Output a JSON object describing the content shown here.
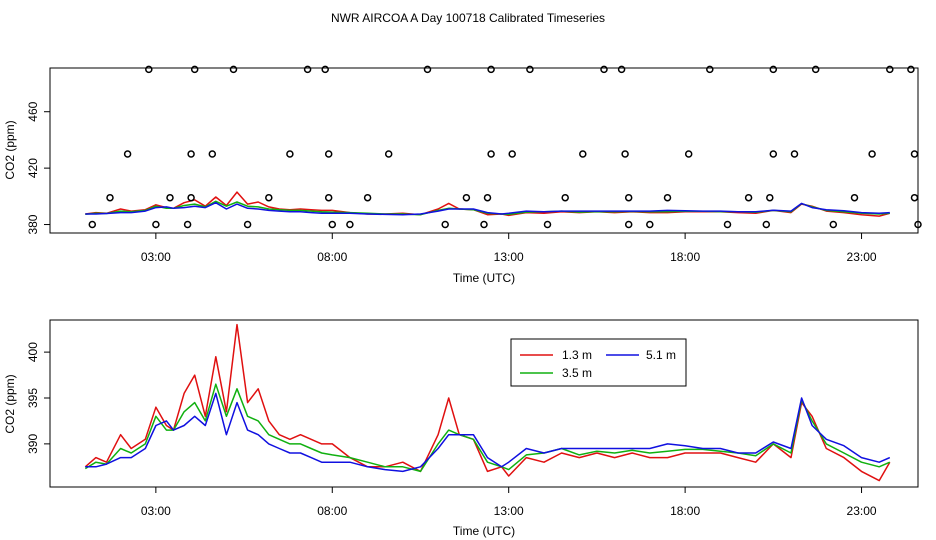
{
  "title": "NWR AIRCOA A  Day 100718  Calibrated Timeseries",
  "chart_data": [
    {
      "type": "scatter+line",
      "title": "",
      "xlabel": "Time (UTC)",
      "ylabel": "CO2 (ppm)",
      "xlim": [
        0,
        24.6
      ],
      "ylim": [
        374,
        491
      ],
      "x_ticks": [
        {
          "value": 3,
          "label": "03:00"
        },
        {
          "value": 8,
          "label": "08:00"
        },
        {
          "value": 13,
          "label": "13:00"
        },
        {
          "value": 18,
          "label": "18:00"
        },
        {
          "value": 23,
          "label": "23:00"
        }
      ],
      "y_ticks": [
        {
          "value": 380,
          "label": "380"
        },
        {
          "value": 420,
          "label": "420"
        },
        {
          "value": 460,
          "label": "460"
        }
      ],
      "points": [
        [
          1.2,
          380
        ],
        [
          1.7,
          399
        ],
        [
          2.2,
          430
        ],
        [
          2.8,
          490
        ],
        [
          3.0,
          380
        ],
        [
          3.4,
          399
        ],
        [
          3.9,
          380
        ],
        [
          4.0,
          399
        ],
        [
          4.0,
          430
        ],
        [
          4.1,
          490
        ],
        [
          4.6,
          430
        ],
        [
          5.2,
          490
        ],
        [
          5.6,
          380
        ],
        [
          6.2,
          399
        ],
        [
          6.8,
          430
        ],
        [
          7.3,
          490
        ],
        [
          7.8,
          490
        ],
        [
          7.9,
          399
        ],
        [
          7.9,
          430
        ],
        [
          8.0,
          380
        ],
        [
          8.5,
          380
        ],
        [
          9.0,
          399
        ],
        [
          9.6,
          430
        ],
        [
          10.7,
          490
        ],
        [
          11.2,
          380
        ],
        [
          11.8,
          399
        ],
        [
          12.3,
          380
        ],
        [
          12.4,
          399
        ],
        [
          12.5,
          430
        ],
        [
          12.5,
          490
        ],
        [
          13.1,
          430
        ],
        [
          13.6,
          490
        ],
        [
          14.1,
          380
        ],
        [
          14.6,
          399
        ],
        [
          15.1,
          430
        ],
        [
          15.7,
          490
        ],
        [
          16.2,
          490
        ],
        [
          16.3,
          430
        ],
        [
          16.4,
          399
        ],
        [
          16.4,
          380
        ],
        [
          17.0,
          380
        ],
        [
          17.5,
          399
        ],
        [
          18.1,
          430
        ],
        [
          18.7,
          490
        ],
        [
          19.2,
          380
        ],
        [
          19.8,
          399
        ],
        [
          20.3,
          380
        ],
        [
          20.4,
          399
        ],
        [
          20.5,
          430
        ],
        [
          20.5,
          490
        ],
        [
          21.1,
          430
        ],
        [
          21.7,
          490
        ],
        [
          22.2,
          380
        ],
        [
          22.8,
          399
        ],
        [
          23.3,
          430
        ],
        [
          23.8,
          490
        ],
        [
          24.4,
          490
        ],
        [
          24.5,
          430
        ],
        [
          24.5,
          399
        ],
        [
          24.6,
          380
        ]
      ],
      "series_ref": "shared_series"
    },
    {
      "type": "line",
      "title": "",
      "xlabel": "Time (UTC)",
      "ylabel": "CO2 (ppm)",
      "xlim": [
        0,
        24.6
      ],
      "ylim": [
        385.3,
        403.5
      ],
      "x_ticks": [
        {
          "value": 3,
          "label": "03:00"
        },
        {
          "value": 8,
          "label": "08:00"
        },
        {
          "value": 13,
          "label": "13:00"
        },
        {
          "value": 18,
          "label": "18:00"
        },
        {
          "value": 23,
          "label": "23:00"
        }
      ],
      "y_ticks": [
        {
          "value": 390,
          "label": "390"
        },
        {
          "value": 395,
          "label": "395"
        },
        {
          "value": 400,
          "label": "400"
        }
      ],
      "legend": [
        {
          "name": "1.3 m",
          "color": "#e01010"
        },
        {
          "name": "5.1 m",
          "color": "#1010e0"
        },
        {
          "name": "3.5 m",
          "color": "#10b010"
        }
      ],
      "legend_position": "top-center",
      "series_ref": "shared_series"
    }
  ],
  "shared_series": [
    {
      "name": "1.3 m",
      "color": "#e01010",
      "x": [
        1.0,
        1.3,
        1.6,
        2.0,
        2.3,
        2.7,
        3.0,
        3.3,
        3.5,
        3.8,
        4.1,
        4.4,
        4.7,
        5.0,
        5.3,
        5.6,
        5.9,
        6.2,
        6.5,
        6.8,
        7.1,
        7.4,
        7.7,
        8.0,
        8.5,
        9.0,
        9.5,
        10.0,
        10.5,
        11.0,
        11.3,
        11.6,
        12.0,
        12.4,
        12.8,
        13.0,
        13.5,
        14.0,
        14.5,
        15.0,
        15.5,
        16.0,
        16.5,
        17.0,
        17.5,
        18.0,
        18.5,
        19.0,
        19.5,
        20.0,
        20.5,
        21.0,
        21.3,
        21.6,
        22.0,
        22.5,
        23.0,
        23.5,
        23.8
      ],
      "y": [
        387.5,
        388.5,
        388.0,
        391.0,
        389.5,
        390.5,
        394.0,
        392.0,
        391.5,
        395.5,
        397.5,
        393.0,
        399.5,
        393.5,
        403.0,
        394.5,
        396.0,
        392.5,
        391.0,
        390.5,
        391.0,
        390.5,
        390.0,
        390.0,
        388.5,
        387.5,
        387.5,
        388.0,
        387.0,
        391.0,
        395.0,
        391.0,
        390.5,
        387.0,
        387.5,
        386.5,
        388.5,
        388.0,
        389.0,
        388.5,
        389.0,
        388.5,
        389.0,
        388.5,
        388.5,
        389.0,
        389.0,
        389.0,
        388.5,
        388.0,
        390.0,
        388.5,
        394.5,
        393.0,
        389.5,
        388.5,
        387.0,
        386.0,
        388.0
      ]
    },
    {
      "name": "3.5 m",
      "color": "#10b010",
      "x": [
        1.0,
        1.3,
        1.6,
        2.0,
        2.3,
        2.7,
        3.0,
        3.3,
        3.5,
        3.8,
        4.1,
        4.4,
        4.7,
        5.0,
        5.3,
        5.6,
        5.9,
        6.2,
        6.5,
        6.8,
        7.1,
        7.4,
        7.7,
        8.0,
        8.5,
        9.0,
        9.5,
        10.0,
        10.5,
        11.0,
        11.3,
        11.6,
        12.0,
        12.4,
        12.8,
        13.0,
        13.5,
        14.0,
        14.5,
        15.0,
        15.5,
        16.0,
        16.5,
        17.0,
        17.5,
        18.0,
        18.5,
        19.0,
        19.5,
        20.0,
        20.5,
        21.0,
        21.3,
        21.6,
        22.0,
        22.5,
        23.0,
        23.5,
        23.8
      ],
      "y": [
        387.3,
        388.0,
        387.8,
        389.5,
        389.0,
        390.0,
        393.0,
        391.5,
        391.5,
        393.5,
        394.5,
        392.5,
        396.5,
        393.0,
        396.0,
        393.0,
        392.5,
        391.0,
        390.5,
        390.0,
        390.0,
        389.5,
        389.0,
        388.8,
        388.5,
        388.0,
        387.5,
        387.5,
        387.0,
        390.0,
        391.5,
        391.0,
        390.5,
        388.0,
        387.5,
        387.2,
        388.8,
        389.0,
        389.5,
        388.8,
        389.2,
        389.0,
        389.3,
        389.0,
        389.2,
        389.4,
        389.4,
        389.2,
        389.0,
        388.7,
        390.0,
        389.0,
        394.8,
        392.5,
        390.0,
        389.0,
        388.0,
        387.5,
        388.0
      ]
    },
    {
      "name": "5.1 m",
      "color": "#1010e0",
      "x": [
        1.0,
        1.3,
        1.6,
        2.0,
        2.3,
        2.7,
        3.0,
        3.3,
        3.5,
        3.8,
        4.1,
        4.4,
        4.7,
        5.0,
        5.3,
        5.6,
        5.9,
        6.2,
        6.5,
        6.8,
        7.1,
        7.4,
        7.7,
        8.0,
        8.5,
        9.0,
        9.5,
        10.0,
        10.5,
        11.0,
        11.3,
        11.6,
        12.0,
        12.4,
        12.8,
        13.0,
        13.5,
        14.0,
        14.5,
        15.0,
        15.5,
        16.0,
        16.5,
        17.0,
        17.5,
        18.0,
        18.5,
        19.0,
        19.5,
        20.0,
        20.5,
        21.0,
        21.3,
        21.6,
        22.0,
        22.5,
        23.0,
        23.5,
        23.8
      ],
      "y": [
        387.5,
        387.5,
        387.8,
        388.5,
        388.5,
        389.5,
        392.0,
        392.5,
        391.5,
        392.0,
        393.0,
        392.0,
        395.5,
        391.0,
        394.5,
        391.5,
        391.0,
        390.0,
        389.5,
        389.0,
        389.0,
        388.5,
        388.0,
        388.0,
        388.0,
        387.5,
        387.2,
        387.0,
        387.5,
        389.5,
        391.0,
        391.0,
        391.0,
        388.5,
        387.5,
        388.0,
        389.5,
        389.0,
        389.5,
        389.5,
        389.5,
        389.5,
        389.5,
        389.5,
        390.0,
        389.8,
        389.5,
        389.5,
        389.0,
        389.0,
        390.2,
        389.5,
        395.0,
        392.0,
        390.5,
        389.8,
        388.5,
        388.0,
        388.5
      ]
    }
  ]
}
